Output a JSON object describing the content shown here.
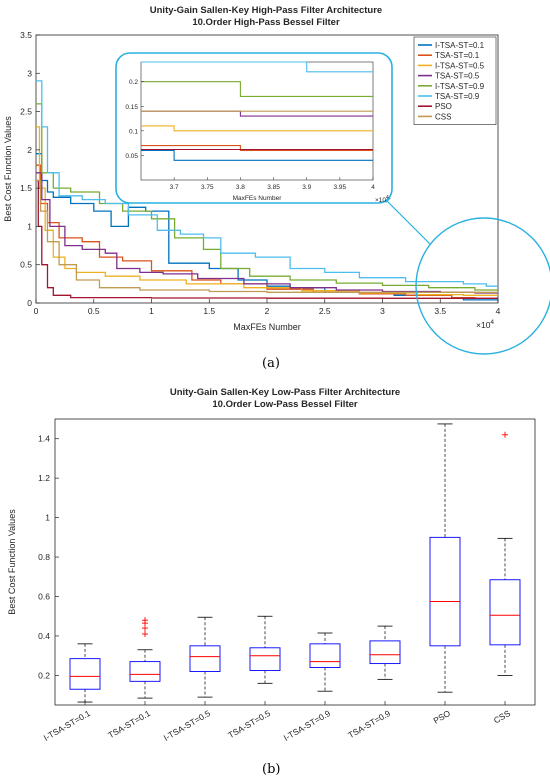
{
  "figure": {
    "label_a": "(a)",
    "label_b": "(b)"
  },
  "chart_data": [
    {
      "type": "line",
      "title": "Unity-Gain Sallen-Key High-Pass Filter Architecture",
      "subtitle": "10.Order High-Pass Bessel Filter",
      "xlabel": "MaxFEs Number",
      "ylabel": "Best Cost Function Values",
      "xlim": [
        0,
        4
      ],
      "ylim": [
        0,
        3.5
      ],
      "x_exponent": "×10",
      "x_exponent_power": "4",
      "xticks": [
        "0",
        "0.5",
        "1",
        "1.5",
        "2",
        "2.5",
        "3",
        "3.5",
        "4"
      ],
      "yticks": [
        "0",
        "0.5",
        "1",
        "1.5",
        "2",
        "2.5",
        "3",
        "3.5"
      ],
      "legend_position": "top-right",
      "series": [
        {
          "name": "I-TSA-ST=0.1",
          "color": "#0072BD",
          "points": [
            [
              0,
              1.95
            ],
            [
              0.05,
              1.6
            ],
            [
              0.1,
              1.45
            ],
            [
              0.15,
              1.38
            ],
            [
              0.3,
              1.3
            ],
            [
              0.5,
              1.2
            ],
            [
              0.65,
              1.0
            ],
            [
              0.8,
              1.25
            ],
            [
              0.95,
              1.2
            ],
            [
              1.05,
              1.2
            ],
            [
              1.15,
              0.52
            ],
            [
              1.5,
              0.45
            ],
            [
              1.75,
              0.3
            ],
            [
              2.0,
              0.22
            ],
            [
              2.2,
              0.2
            ],
            [
              2.5,
              0.14
            ],
            [
              2.8,
              0.12
            ],
            [
              3.1,
              0.1
            ],
            [
              3.6,
              0.06
            ],
            [
              3.7,
              0.04
            ],
            [
              4.0,
              0.04
            ]
          ]
        },
        {
          "name": "TSA-ST=0.1",
          "color": "#D95319",
          "points": [
            [
              0,
              1.8
            ],
            [
              0.04,
              1.3
            ],
            [
              0.1,
              1.05
            ],
            [
              0.2,
              0.85
            ],
            [
              0.4,
              0.8
            ],
            [
              0.55,
              0.6
            ],
            [
              0.75,
              0.55
            ],
            [
              1.0,
              0.42
            ],
            [
              1.35,
              0.3
            ],
            [
              1.6,
              0.25
            ],
            [
              2.0,
              0.18
            ],
            [
              2.4,
              0.14
            ],
            [
              2.8,
              0.12
            ],
            [
              3.2,
              0.1
            ],
            [
              3.6,
              0.07
            ],
            [
              3.8,
              0.06
            ],
            [
              4.0,
              0.06
            ]
          ]
        },
        {
          "name": "I-TSA-ST=0.5",
          "color": "#EDB120",
          "points": [
            [
              0,
              2.3
            ],
            [
              0.03,
              1.5
            ],
            [
              0.08,
              0.95
            ],
            [
              0.15,
              0.6
            ],
            [
              0.25,
              0.45
            ],
            [
              0.35,
              0.4
            ],
            [
              0.6,
              0.35
            ],
            [
              0.9,
              0.3
            ],
            [
              1.3,
              0.25
            ],
            [
              1.8,
              0.2
            ],
            [
              2.3,
              0.16
            ],
            [
              2.8,
              0.13
            ],
            [
              3.3,
              0.11
            ],
            [
              3.7,
              0.1
            ],
            [
              4.0,
              0.1
            ]
          ]
        },
        {
          "name": "TSA-ST=0.5",
          "color": "#7E2F8E",
          "points": [
            [
              0,
              1.7
            ],
            [
              0.05,
              1.35
            ],
            [
              0.12,
              1.0
            ],
            [
              0.25,
              0.75
            ],
            [
              0.4,
              0.7
            ],
            [
              0.6,
              0.65
            ],
            [
              0.7,
              0.45
            ],
            [
              0.9,
              0.4
            ],
            [
              1.1,
              0.38
            ],
            [
              1.4,
              0.32
            ],
            [
              1.8,
              0.25
            ],
            [
              2.2,
              0.2
            ],
            [
              2.6,
              0.17
            ],
            [
              3.0,
              0.15
            ],
            [
              3.5,
              0.14
            ],
            [
              3.8,
              0.13
            ],
            [
              4.0,
              0.13
            ]
          ]
        },
        {
          "name": "I-TSA-ST=0.9",
          "color": "#77AC30",
          "points": [
            [
              0,
              2.6
            ],
            [
              0.05,
              1.7
            ],
            [
              0.15,
              1.5
            ],
            [
              0.3,
              1.45
            ],
            [
              0.55,
              1.3
            ],
            [
              0.75,
              1.2
            ],
            [
              1.0,
              1.1
            ],
            [
              1.2,
              0.85
            ],
            [
              1.45,
              0.7
            ],
            [
              1.6,
              0.45
            ],
            [
              1.85,
              0.35
            ],
            [
              2.2,
              0.3
            ],
            [
              2.6,
              0.26
            ],
            [
              3.0,
              0.23
            ],
            [
              3.4,
              0.2
            ],
            [
              3.8,
              0.17
            ],
            [
              4.0,
              0.17
            ]
          ]
        },
        {
          "name": "TSA-ST=0.9",
          "color": "#4DBEEE",
          "points": [
            [
              0,
              2.9
            ],
            [
              0.05,
              2.3
            ],
            [
              0.1,
              1.7
            ],
            [
              0.2,
              1.4
            ],
            [
              0.4,
              1.35
            ],
            [
              0.6,
              1.3
            ],
            [
              0.8,
              1.15
            ],
            [
              1.05,
              0.95
            ],
            [
              1.25,
              0.9
            ],
            [
              1.45,
              0.85
            ],
            [
              1.6,
              0.65
            ],
            [
              1.9,
              0.6
            ],
            [
              2.2,
              0.45
            ],
            [
              2.5,
              0.4
            ],
            [
              2.8,
              0.33
            ],
            [
              3.2,
              0.28
            ],
            [
              3.7,
              0.25
            ],
            [
              3.9,
              0.22
            ],
            [
              4.0,
              0.22
            ]
          ]
        },
        {
          "name": "PSO",
          "color": "#A2142F",
          "points": [
            [
              0,
              1.6
            ],
            [
              0.02,
              1.0
            ],
            [
              0.05,
              0.5
            ],
            [
              0.1,
              0.2
            ],
            [
              0.15,
              0.1
            ],
            [
              0.3,
              0.07
            ],
            [
              1.0,
              0.065
            ],
            [
              2.0,
              0.063
            ],
            [
              3.0,
              0.062
            ],
            [
              4.0,
              0.062
            ]
          ]
        },
        {
          "name": "CSS",
          "color": "#C09A50",
          "points": [
            [
              0,
              1.6
            ],
            [
              0.04,
              1.2
            ],
            [
              0.1,
              0.8
            ],
            [
              0.2,
              0.5
            ],
            [
              0.35,
              0.3
            ],
            [
              0.55,
              0.2
            ],
            [
              0.9,
              0.17
            ],
            [
              1.5,
              0.15
            ],
            [
              2.0,
              0.14
            ],
            [
              3.0,
              0.14
            ],
            [
              4.0,
              0.14
            ]
          ]
        }
      ],
      "inset": {
        "xlabel": "MaxFEs Number",
        "xlim": [
          3.65,
          4.0
        ],
        "ylim": [
          0,
          0.24
        ],
        "xticks": [
          "3.7",
          "3.75",
          "3.8",
          "3.85",
          "3.9",
          "3.95",
          "4"
        ],
        "yticks": [
          "0.05",
          "0.1",
          "0.15",
          "0.2"
        ],
        "x_exponent": "×10",
        "x_exponent_power": "4"
      }
    },
    {
      "type": "box",
      "title": "Unity-Gain Sallen-Key Low-Pass Filter Architecture",
      "subtitle": "10.Order Low-Pass Bessel Filter",
      "xlabel": "",
      "ylabel": "Best Cost Function Values",
      "ylim": [
        0.05,
        1.5
      ],
      "yticks": [
        "0.2",
        "0.4",
        "0.6",
        "0.8",
        "1",
        "1.2",
        "1.4"
      ],
      "categories": [
        "I-TSA-ST=0.1",
        "TSA-ST=0.1",
        "I-TSA-ST=0.5",
        "TSA-ST=0.5",
        "I-TSA-ST=0.9",
        "TSA-ST=0.9",
        "PSO",
        "CSS"
      ],
      "box_color": "#0000FF",
      "median_color": "#FF0000",
      "boxes": [
        {
          "min": 0.065,
          "q1": 0.13,
          "median": 0.195,
          "q3": 0.285,
          "max": 0.36,
          "outliers": []
        },
        {
          "min": 0.085,
          "q1": 0.17,
          "median": 0.205,
          "q3": 0.27,
          "max": 0.33,
          "outliers": [
            0.41,
            0.44,
            0.465,
            0.48
          ]
        },
        {
          "min": 0.09,
          "q1": 0.22,
          "median": 0.295,
          "q3": 0.35,
          "max": 0.495,
          "outliers": []
        },
        {
          "min": 0.16,
          "q1": 0.225,
          "median": 0.3,
          "q3": 0.34,
          "max": 0.5,
          "outliers": []
        },
        {
          "min": 0.12,
          "q1": 0.24,
          "median": 0.27,
          "q3": 0.36,
          "max": 0.415,
          "outliers": []
        },
        {
          "min": 0.18,
          "q1": 0.26,
          "median": 0.305,
          "q3": 0.375,
          "max": 0.45,
          "outliers": []
        },
        {
          "min": 0.115,
          "q1": 0.35,
          "median": 0.575,
          "q3": 0.9,
          "max": 1.475,
          "outliers": []
        },
        {
          "min": 0.2,
          "q1": 0.355,
          "median": 0.505,
          "q3": 0.685,
          "max": 0.895,
          "outliers": [
            1.42
          ]
        }
      ]
    }
  ]
}
